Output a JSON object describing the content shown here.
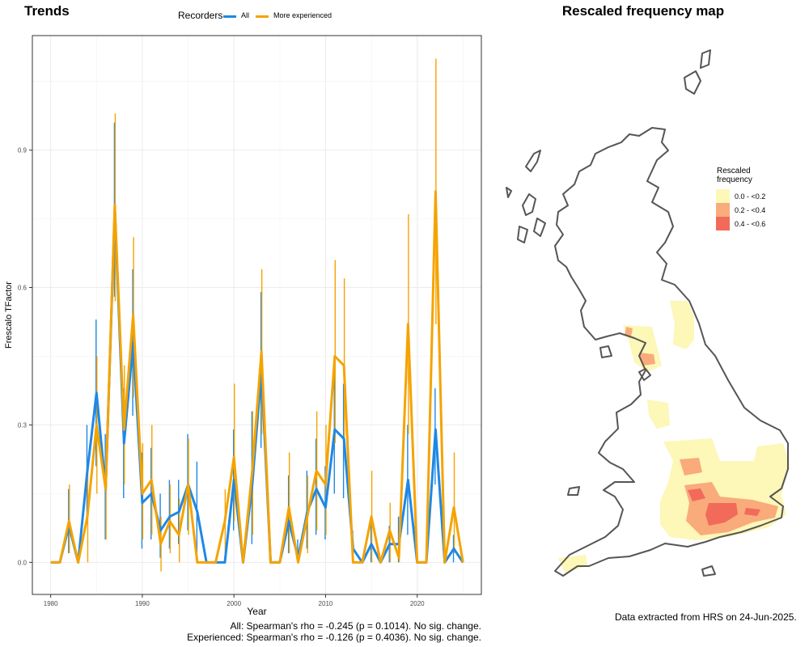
{
  "panels": {
    "trends_title": "Trends",
    "map_title": "Rescaled frequency map",
    "stats_all": "All: Spearman's rho = -0.245 (p = 0.1014). No sig. change.",
    "stats_experienced": "Experienced: Spearman's rho = -0.126 (p = 0.4036). No sig. change.",
    "data_source": "Data extracted from HRS on 24-Jun-2025."
  },
  "legend": {
    "title": "Recorders",
    "items": [
      {
        "label": "All",
        "color": "#1e88e5"
      },
      {
        "label": "More experienced",
        "color": "#f5a300"
      }
    ]
  },
  "map_legend": {
    "title_line1": "Rescaled",
    "title_line2": "frequency",
    "items": [
      {
        "label": "0.0 - <0.2",
        "color": "#fdf7b8"
      },
      {
        "label": "0.2 - <0.4",
        "color": "#f9ab7c"
      },
      {
        "label": "0.4 - <0.6",
        "color": "#f26a5a"
      }
    ]
  },
  "chart_data": {
    "type": "line",
    "xlabel": "Year",
    "ylabel": "Frescalo TFactor",
    "xlim": [
      1978,
      2027
    ],
    "ylim": [
      -0.07,
      1.15
    ],
    "xticks": [
      1980,
      1990,
      2000,
      2010,
      2020
    ],
    "yticks": [
      0.0,
      0.3,
      0.6,
      0.9
    ],
    "grid": true,
    "x": [
      1980,
      1981,
      1982,
      1983,
      1984,
      1985,
      1986,
      1987,
      1988,
      1989,
      1990,
      1991,
      1992,
      1993,
      1994,
      1995,
      1996,
      1997,
      1998,
      1999,
      2000,
      2001,
      2002,
      2003,
      2004,
      2005,
      2006,
      2007,
      2008,
      2009,
      2010,
      2011,
      2012,
      2013,
      2014,
      2015,
      2016,
      2017,
      2018,
      2019,
      2020,
      2021,
      2022,
      2023,
      2024,
      2025
    ],
    "series": [
      {
        "name": "All",
        "color": "#1e88e5",
        "values": [
          0,
          0,
          0.08,
          0,
          0.2,
          0.37,
          0.16,
          0.77,
          0.26,
          0.48,
          0.13,
          0.15,
          0.07,
          0.1,
          0.11,
          0.17,
          0.11,
          0,
          0,
          0,
          0.18,
          0,
          0.17,
          0.42,
          0,
          0,
          0.09,
          0.01,
          0.11,
          0.16,
          0.12,
          0.29,
          0.27,
          0.03,
          0,
          0.04,
          0,
          0.04,
          0.04,
          0.18,
          0,
          0,
          0.29,
          0,
          0.03,
          0
        ],
        "lower": [
          0,
          0,
          0.02,
          0,
          0.1,
          0.21,
          0.05,
          0.58,
          0.14,
          0.32,
          0.03,
          0.05,
          0.01,
          0.03,
          0.04,
          0.07,
          0.02,
          0,
          0,
          0,
          0.07,
          0,
          0.04,
          0.25,
          0,
          0,
          0.02,
          0,
          0.03,
          0.06,
          0.05,
          0.15,
          0.14,
          0,
          0,
          0,
          0,
          0,
          0,
          0.06,
          0,
          0,
          0.17,
          0,
          0,
          0
        ],
        "upper": [
          0,
          0,
          0.16,
          0,
          0.3,
          0.53,
          0.28,
          0.96,
          0.38,
          0.64,
          0.24,
          0.25,
          0.15,
          0.18,
          0.18,
          0.28,
          0.22,
          0,
          0,
          0,
          0.29,
          0,
          0.33,
          0.59,
          0,
          0,
          0.19,
          0.05,
          0.2,
          0.27,
          0.21,
          0.42,
          0.39,
          0.07,
          0,
          0.09,
          0,
          0.08,
          0.1,
          0.3,
          0,
          0,
          0.38,
          0,
          0.06,
          0
        ]
      },
      {
        "name": "More experienced",
        "color": "#f5a300",
        "values": [
          0,
          0,
          0.09,
          0,
          0.1,
          0.3,
          0.16,
          0.78,
          0.29,
          0.54,
          0.15,
          0.18,
          0.04,
          0.09,
          0.06,
          0.17,
          0,
          0,
          0,
          0.09,
          0.23,
          0,
          0.2,
          0.46,
          0,
          0,
          0.12,
          0,
          0.1,
          0.2,
          0.17,
          0.45,
          0.43,
          0,
          0,
          0.1,
          0,
          0.07,
          0.01,
          0.52,
          0,
          0,
          0.81,
          0,
          0.12,
          0
        ],
        "lower": [
          0,
          0,
          0.02,
          0,
          0,
          0.15,
          0.05,
          0.57,
          0.17,
          0.36,
          0.05,
          0.06,
          -0.02,
          0.02,
          0,
          0.06,
          0,
          0,
          0,
          0.02,
          0.09,
          0,
          0.06,
          0.28,
          0,
          0,
          0.02,
          0,
          0.02,
          0.07,
          0.06,
          0.26,
          0.24,
          0,
          0,
          0,
          0,
          0,
          0,
          0.28,
          0,
          0,
          0.52,
          0,
          0.02,
          0
        ],
        "upper": [
          0,
          0,
          0.17,
          0,
          0.22,
          0.45,
          0.26,
          0.98,
          0.43,
          0.71,
          0.26,
          0.3,
          0.1,
          0.17,
          0.14,
          0.27,
          0,
          0,
          0,
          0.16,
          0.39,
          0,
          0.33,
          0.64,
          0,
          0,
          0.24,
          0,
          0.19,
          0.33,
          0.3,
          0.66,
          0.62,
          0,
          0,
          0.2,
          0,
          0.13,
          0.04,
          0.76,
          0,
          0,
          1.1,
          0,
          0.24,
          0
        ]
      }
    ]
  }
}
